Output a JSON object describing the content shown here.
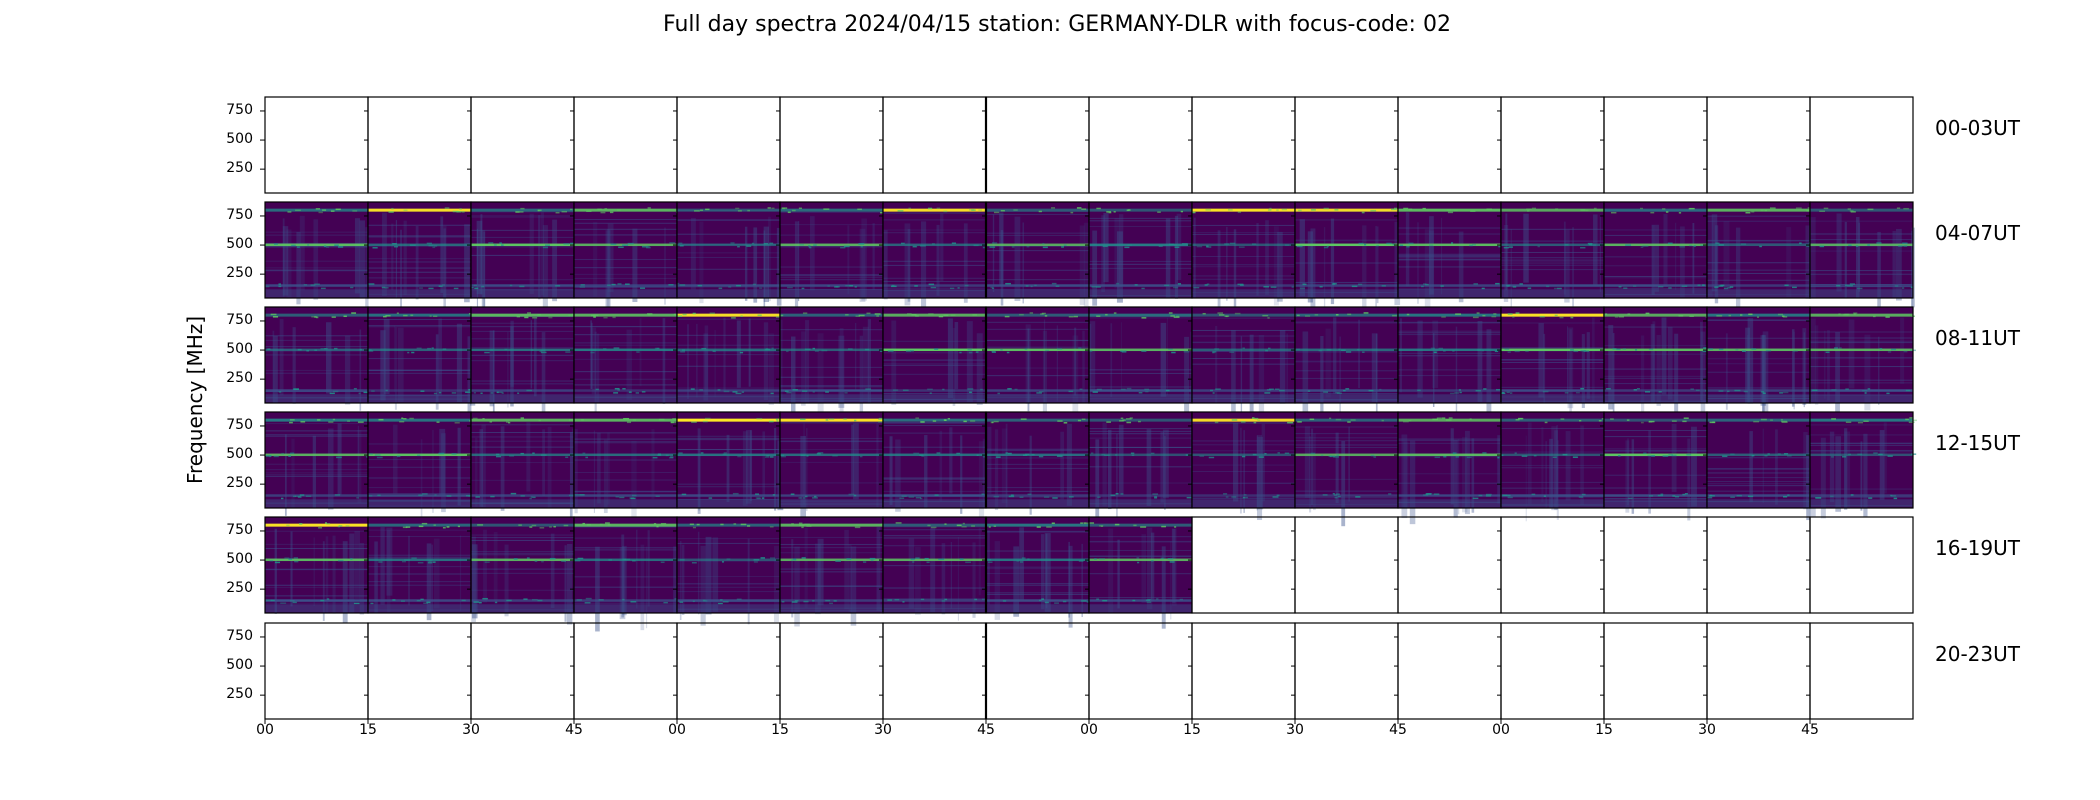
{
  "title": "Full day spectra 2024/04/15 station: GERMANY-DLR with focus-code: 02",
  "ylabel": "Frequency [MHz]",
  "yticks": [
    "750",
    "500",
    "250"
  ],
  "xticks": [
    "00",
    "15",
    "30",
    "45",
    "00",
    "15",
    "30",
    "45",
    "00",
    "15",
    "30",
    "45",
    "00",
    "15",
    "30",
    "45"
  ],
  "rows": [
    {
      "label": "00-03UT",
      "filled_panels": 0
    },
    {
      "label": "04-07UT",
      "filled_panels": 16
    },
    {
      "label": "08-11UT",
      "filled_panels": 16
    },
    {
      "label": "12-15UT",
      "filled_panels": 16
    },
    {
      "label": "16-19UT",
      "filled_panels": 9
    },
    {
      "label": "20-23UT",
      "filled_panels": 0
    }
  ],
  "colors": {
    "background": "#440154",
    "mid": "#3b528b",
    "teal": "#21918c",
    "green": "#5ec962",
    "yellow": "#fde725"
  },
  "chart_data": {
    "type": "heatmap",
    "title": "Full day spectra 2024/04/15 station: GERMANY-DLR with focus-code: 02",
    "ylabel": "Frequency [MHz]",
    "ylim": [
      45,
      870
    ],
    "yticks": [
      250,
      500,
      750
    ],
    "rows": [
      "00-03UT",
      "04-07UT",
      "08-11UT",
      "12-15UT",
      "16-19UT",
      "20-23UT"
    ],
    "panels_per_row": 16,
    "minutes_per_panel": 15,
    "panels_with_data": [
      0,
      16,
      16,
      16,
      9,
      0
    ],
    "persistent_bands_mhz": [
      800,
      500,
      150
    ],
    "colormap": "viridis"
  }
}
